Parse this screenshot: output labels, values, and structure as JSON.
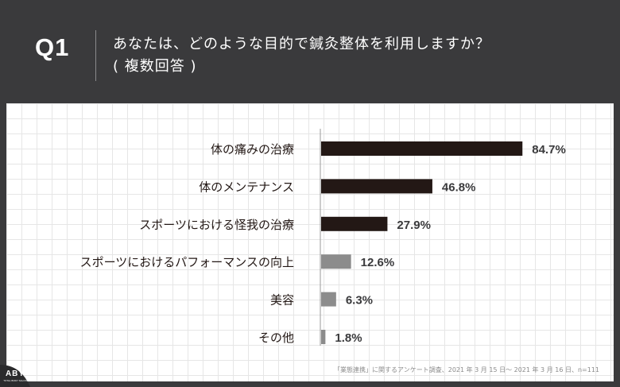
{
  "header": {
    "q_label": "Q1",
    "question_line1": "あなたは、どのような目的で鍼灸整体を利用しますか？",
    "question_line2": "( 複数回答 )"
  },
  "chart_data": {
    "type": "bar",
    "orientation": "horizontal",
    "categories": [
      "体の痛みの治療",
      "体のメンテナンス",
      "スポーツにおける怪我の治療",
      "スポーツにおけるパフォーマンスの向上",
      "美容",
      "その他"
    ],
    "values": [
      84.7,
      46.8,
      27.9,
      12.6,
      6.3,
      1.8
    ],
    "value_labels": [
      "84.7%",
      "46.8%",
      "27.9%",
      "12.6%",
      "6.3%",
      "1.8%"
    ],
    "xlim": [
      0,
      100
    ],
    "unit": "%",
    "colors": {
      "high": "#231815",
      "low": "#8c8c8c"
    },
    "dark_series_count": 3
  },
  "footnote": "「業態連携」に関するアンケート調査、2021 年 3 月 15 日〜 2021 年 3 月 16 日、n=111",
  "logo": {
    "text": "ABY",
    "subtext": "TOTAL BODY SALON"
  }
}
